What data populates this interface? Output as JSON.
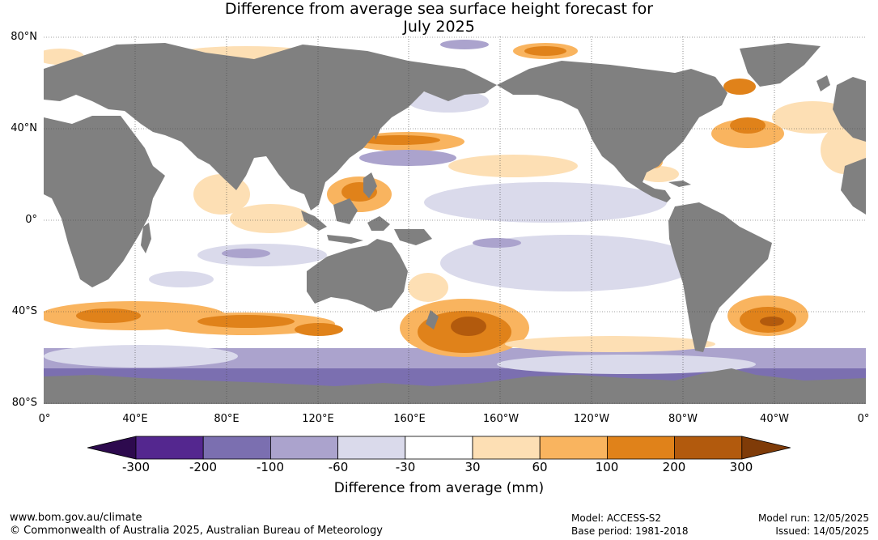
{
  "title": {
    "line1": "Difference from average sea surface height forecast for",
    "line2": "July 2025"
  },
  "map": {
    "latitude_labels": [
      "80°N",
      "40°N",
      "0°",
      "40°S",
      "80°S"
    ],
    "longitude_labels": [
      "0°",
      "40°E",
      "80°E",
      "120°E",
      "160°E",
      "160°W",
      "120°W",
      "80°W",
      "40°W",
      "0°"
    ],
    "land_color": "#808080",
    "gridlines": "dotted"
  },
  "colorbar": {
    "colors": [
      "#2d0a4e",
      "#54278f",
      "#7b6fb0",
      "#aba3cd",
      "#dadaeb",
      "#ffffff",
      "#fddfb4",
      "#f9b45f",
      "#e0821a",
      "#b25a0d",
      "#7f3b08"
    ],
    "tick_labels": [
      "-300",
      "-200",
      "-100",
      "-60",
      "-30",
      "30",
      "60",
      "100",
      "200",
      "300"
    ],
    "title": "Difference from average (mm)"
  },
  "footer": {
    "url": "www.bom.gov.au/climate",
    "copyright": "© Commonwealth of Australia 2025, Australian Bureau of Meteorology",
    "model": "Model: ACCESS-S2",
    "base_period": "Base period: 1981-2018",
    "model_run": "Model run: 12/05/2025",
    "issued": "Issued: 14/05/2025"
  }
}
